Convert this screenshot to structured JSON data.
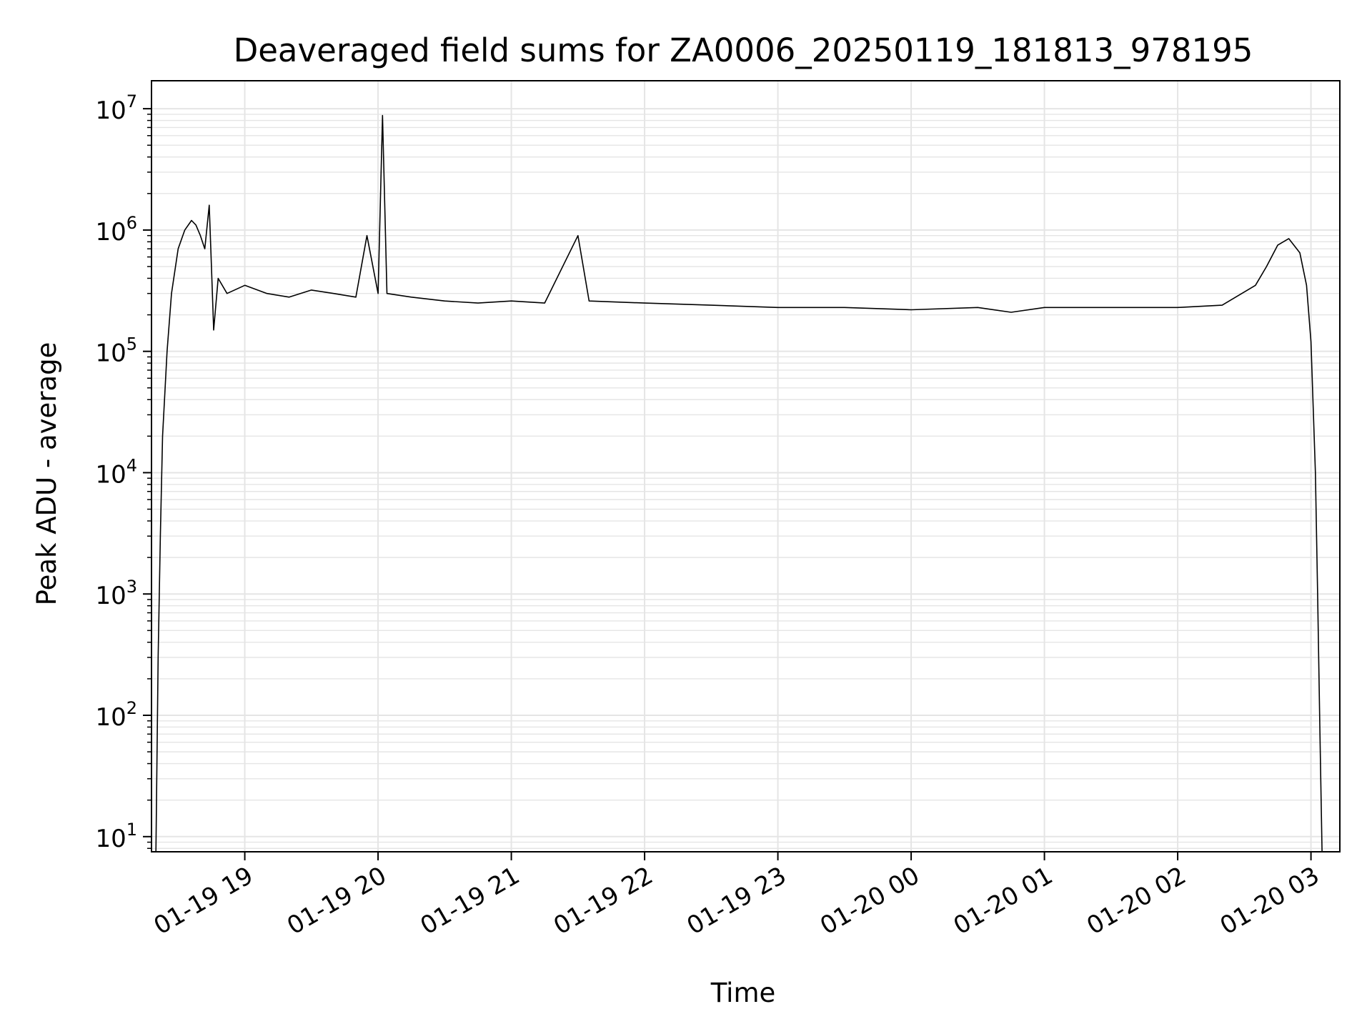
{
  "chart_data": {
    "type": "line",
    "title": "Deaveraged field sums for ZA0006_20250119_181813_978195",
    "xlabel": "Time",
    "ylabel": "Peak ADU - average",
    "yscale": "log",
    "ylim": [
      7.5,
      17000000
    ],
    "xlim": [
      "2025-01-19 18:18",
      "2025-01-20 03:13"
    ],
    "grid": true,
    "line_color": "#000000",
    "grid_color": "#e5e5e5",
    "x_ticks": [
      {
        "label": "01-19 19",
        "value": "2025-01-19 19:00"
      },
      {
        "label": "01-19 20",
        "value": "2025-01-19 20:00"
      },
      {
        "label": "01-19 21",
        "value": "2025-01-19 21:00"
      },
      {
        "label": "01-19 22",
        "value": "2025-01-19 22:00"
      },
      {
        "label": "01-19 23",
        "value": "2025-01-19 23:00"
      },
      {
        "label": "01-20 00",
        "value": "2025-01-20 00:00"
      },
      {
        "label": "01-20 01",
        "value": "2025-01-20 01:00"
      },
      {
        "label": "01-20 02",
        "value": "2025-01-20 02:00"
      },
      {
        "label": "01-20 03",
        "value": "2025-01-20 03:00"
      }
    ],
    "y_ticks": [
      {
        "base": "10",
        "exp": "1",
        "value": 10
      },
      {
        "base": "10",
        "exp": "2",
        "value": 100
      },
      {
        "base": "10",
        "exp": "3",
        "value": 1000
      },
      {
        "base": "10",
        "exp": "4",
        "value": 10000
      },
      {
        "base": "10",
        "exp": "5",
        "value": 100000
      },
      {
        "base": "10",
        "exp": "6",
        "value": 1000000
      },
      {
        "base": "10",
        "exp": "7",
        "value": 10000000
      }
    ],
    "series": [
      {
        "points": [
          [
            "2025-01-19 18:20",
            7.5
          ],
          [
            "2025-01-19 18:21",
            300
          ],
          [
            "2025-01-19 18:22",
            3000
          ],
          [
            "2025-01-19 18:23",
            20000
          ],
          [
            "2025-01-19 18:25",
            100000
          ],
          [
            "2025-01-19 18:27",
            300000
          ],
          [
            "2025-01-19 18:30",
            700000
          ],
          [
            "2025-01-19 18:33",
            1000000
          ],
          [
            "2025-01-19 18:36",
            1200000
          ],
          [
            "2025-01-19 18:38",
            1100000
          ],
          [
            "2025-01-19 18:40",
            900000
          ],
          [
            "2025-01-19 18:42",
            700000
          ],
          [
            "2025-01-19 18:44",
            1600000
          ],
          [
            "2025-01-19 18:45",
            500000
          ],
          [
            "2025-01-19 18:46",
            150000
          ],
          [
            "2025-01-19 18:48",
            400000
          ],
          [
            "2025-01-19 18:52",
            300000
          ],
          [
            "2025-01-19 19:00",
            350000
          ],
          [
            "2025-01-19 19:10",
            300000
          ],
          [
            "2025-01-19 19:20",
            280000
          ],
          [
            "2025-01-19 19:30",
            320000
          ],
          [
            "2025-01-19 19:40",
            300000
          ],
          [
            "2025-01-19 19:50",
            280000
          ],
          [
            "2025-01-19 19:55",
            900000
          ],
          [
            "2025-01-19 20:00",
            300000
          ],
          [
            "2025-01-19 20:02",
            8800000
          ],
          [
            "2025-01-19 20:04",
            300000
          ],
          [
            "2025-01-19 20:15",
            280000
          ],
          [
            "2025-01-19 20:30",
            260000
          ],
          [
            "2025-01-19 20:45",
            250000
          ],
          [
            "2025-01-19 21:00",
            260000
          ],
          [
            "2025-01-19 21:15",
            250000
          ],
          [
            "2025-01-19 21:30",
            900000
          ],
          [
            "2025-01-19 21:35",
            260000
          ],
          [
            "2025-01-19 22:00",
            250000
          ],
          [
            "2025-01-19 22:30",
            240000
          ],
          [
            "2025-01-19 23:00",
            230000
          ],
          [
            "2025-01-19 23:30",
            230000
          ],
          [
            "2025-01-20 00:00",
            220000
          ],
          [
            "2025-01-20 00:30",
            230000
          ],
          [
            "2025-01-20 00:45",
            210000
          ],
          [
            "2025-01-20 01:00",
            230000
          ],
          [
            "2025-01-20 01:30",
            230000
          ],
          [
            "2025-01-20 02:00",
            230000
          ],
          [
            "2025-01-20 02:20",
            240000
          ],
          [
            "2025-01-20 02:35",
            350000
          ],
          [
            "2025-01-20 02:40",
            500000
          ],
          [
            "2025-01-20 02:45",
            750000
          ],
          [
            "2025-01-20 02:50",
            850000
          ],
          [
            "2025-01-20 02:55",
            650000
          ],
          [
            "2025-01-20 02:58",
            350000
          ],
          [
            "2025-01-20 03:00",
            120000
          ],
          [
            "2025-01-20 03:02",
            10000
          ],
          [
            "2025-01-20 03:03",
            1000
          ],
          [
            "2025-01-20 03:04",
            80
          ],
          [
            "2025-01-20 03:05",
            7.5
          ]
        ]
      }
    ]
  }
}
